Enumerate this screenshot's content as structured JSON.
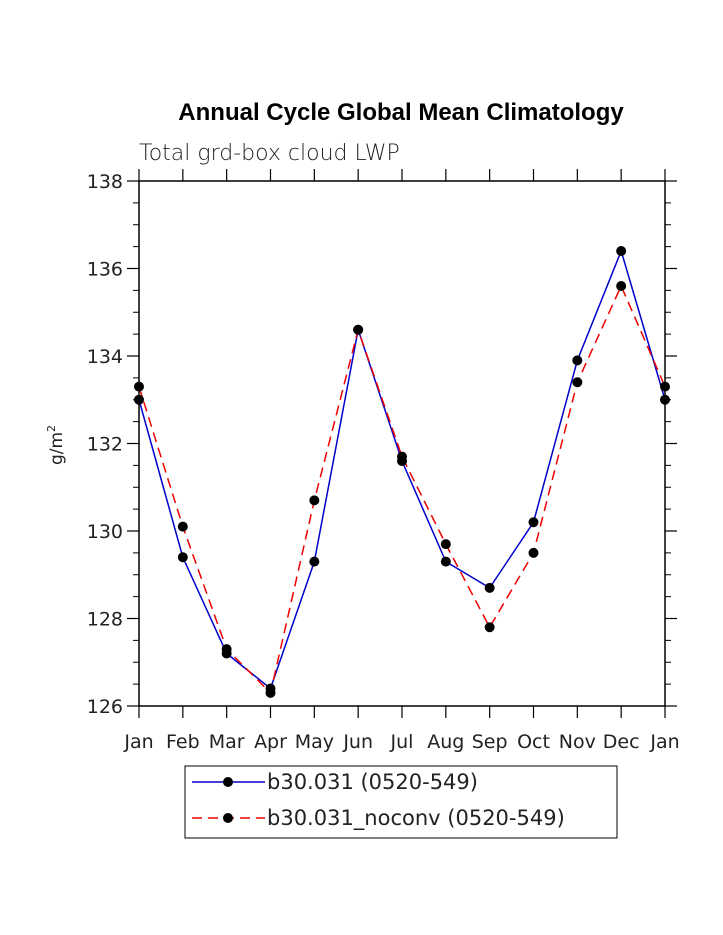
{
  "chart_data": {
    "type": "line",
    "title": "Annual Cycle Global Mean Climatology",
    "subtitle": "Total grd-box cloud LWP",
    "ylabel": "g/m",
    "ylabel_sup": "2",
    "ylim": [
      126,
      138
    ],
    "yticks": [
      126,
      128,
      130,
      132,
      134,
      136,
      138
    ],
    "ytick_labels": [
      "126",
      "128",
      "130",
      "132",
      "134",
      "136",
      "138"
    ],
    "categories": [
      "Jan",
      "Feb",
      "Mar",
      "Apr",
      "May",
      "Jun",
      "Jul",
      "Aug",
      "Sep",
      "Oct",
      "Nov",
      "Dec",
      "Jan"
    ],
    "series": [
      {
        "name": "b30.031 (0520-549)",
        "color": "#0000cc",
        "style": "solid",
        "values": [
          133.0,
          129.4,
          127.2,
          126.4,
          129.3,
          134.6,
          131.6,
          129.3,
          128.7,
          130.2,
          133.9,
          136.4,
          133.0
        ]
      },
      {
        "name": "b30.031_noconv (0520-549)",
        "color": "#ee0000",
        "style": "dashed",
        "values": [
          133.3,
          130.1,
          127.3,
          126.3,
          130.7,
          134.6,
          131.7,
          129.7,
          127.8,
          129.5,
          133.4,
          135.6,
          133.3
        ]
      }
    ],
    "legend_position": "bottom-center"
  }
}
